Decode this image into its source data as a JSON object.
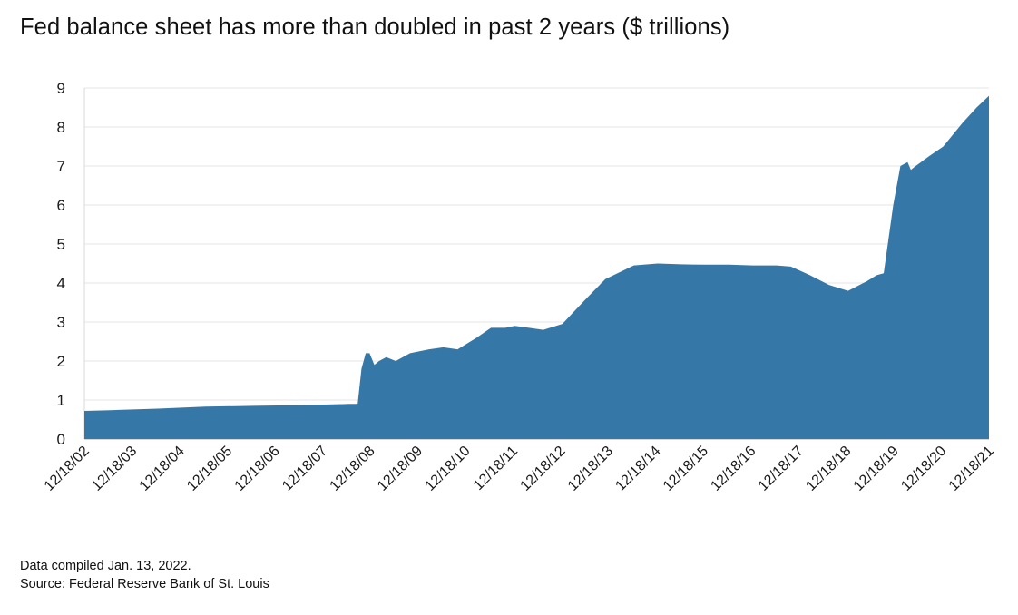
{
  "title": "Fed balance sheet has more than doubled in past 2 years ($ trillions)",
  "notes": {
    "compiled": "Data compiled Jan. 13, 2022.",
    "source": "Source: Federal Reserve Bank of St. Louis"
  },
  "colors": {
    "area": "#3578a8",
    "grid": "#e6e6e6"
  },
  "chart_data": {
    "type": "area",
    "title": "Fed balance sheet has more than doubled in past 2 years ($ trillions)",
    "xlabel": "",
    "ylabel": "",
    "ylim": [
      0,
      9
    ],
    "yticks": [
      0,
      1,
      2,
      3,
      4,
      5,
      6,
      7,
      8,
      9
    ],
    "x_tick_labels": [
      "12/18/02",
      "12/18/03",
      "12/18/04",
      "12/18/05",
      "12/18/06",
      "12/18/07",
      "12/18/08",
      "12/18/09",
      "12/18/10",
      "12/18/11",
      "12/18/12",
      "12/18/13",
      "12/18/14",
      "12/18/15",
      "12/18/16",
      "12/18/17",
      "12/18/18",
      "12/18/19",
      "12/18/20",
      "12/18/21"
    ],
    "grid": true,
    "legend": "none",
    "series": [
      {
        "x": [
          2002.96,
          2003.5,
          2004.5,
          2005.5,
          2006.5,
          2007.5,
          2008.5,
          2008.7,
          2008.78,
          2008.87,
          2008.95,
          2009.05,
          2009.15,
          2009.3,
          2009.5,
          2009.8,
          2010.2,
          2010.5,
          2010.8,
          2011.2,
          2011.5,
          2011.8,
          2012.0,
          2012.3,
          2012.6,
          2013.0,
          2013.5,
          2013.9,
          2014.5,
          2015.0,
          2015.5,
          2016.0,
          2016.5,
          2017.0,
          2017.5,
          2017.8,
          2018.2,
          2018.6,
          2019.0,
          2019.4,
          2019.6,
          2019.75,
          2019.95,
          2020.1,
          2020.25,
          2020.32,
          2020.42,
          2020.7,
          2021.0,
          2021.4,
          2021.7,
          2021.96
        ],
        "values": [
          0.72,
          0.74,
          0.78,
          0.83,
          0.85,
          0.87,
          0.9,
          0.9,
          1.8,
          2.2,
          2.2,
          1.9,
          2.0,
          2.1,
          2.0,
          2.2,
          2.3,
          2.35,
          2.3,
          2.6,
          2.85,
          2.85,
          2.9,
          2.85,
          2.8,
          2.95,
          3.6,
          4.1,
          4.45,
          4.5,
          4.48,
          4.47,
          4.47,
          4.45,
          4.45,
          4.42,
          4.2,
          3.95,
          3.8,
          4.05,
          4.2,
          4.25,
          6.0,
          7.0,
          7.1,
          6.9,
          7.0,
          7.25,
          7.5,
          8.1,
          8.5,
          8.8
        ]
      }
    ]
  }
}
